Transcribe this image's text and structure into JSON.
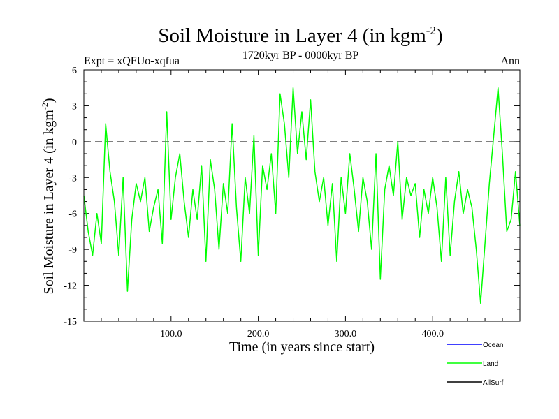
{
  "chart_data": {
    "type": "line",
    "title": "Soil Moisture in Layer 4 (in kgm",
    "title_sup": "-2",
    "title_close": ")",
    "subtitle_left": "Expt = xQFUo-xqfua",
    "subtitle_center": "1720kyr BP - 0000kyr BP",
    "subtitle_right": "Ann",
    "xlabel": "Time (in years since start)",
    "ylabel": "Soil Moisture in Layer 4 (in kgm",
    "ylabel_sup": "-2",
    "ylabel_close": ")",
    "xlim": [
      0,
      500
    ],
    "ylim": [
      -15,
      6
    ],
    "x_ticks": [
      100,
      200,
      300,
      400
    ],
    "x_tick_labels": [
      "100.0",
      "200.0",
      "300.0",
      "400.0"
    ],
    "y_ticks": [
      6,
      3,
      0,
      -3,
      -6,
      -9,
      -12,
      -15
    ],
    "y_tick_labels": [
      "6",
      "3",
      "0",
      "-3",
      "-6",
      "-9",
      "-12",
      "-15"
    ],
    "reference_line": 0,
    "legend": [
      {
        "name": "Ocean",
        "color": "#0000ff"
      },
      {
        "name": "Land",
        "color": "#00ff00"
      },
      {
        "name": "AllSurf",
        "color": "#000000"
      }
    ],
    "series": [
      {
        "name": "Land",
        "color": "#00ff00",
        "x": [
          0,
          5,
          10,
          15,
          20,
          25,
          30,
          35,
          40,
          45,
          50,
          55,
          60,
          65,
          70,
          75,
          80,
          85,
          90,
          95,
          100,
          105,
          110,
          115,
          120,
          125,
          130,
          135,
          140,
          145,
          150,
          155,
          160,
          165,
          170,
          175,
          180,
          185,
          190,
          195,
          200,
          205,
          210,
          215,
          220,
          225,
          230,
          235,
          240,
          245,
          250,
          255,
          260,
          265,
          270,
          275,
          280,
          285,
          290,
          295,
          300,
          305,
          310,
          315,
          320,
          325,
          330,
          335,
          340,
          345,
          350,
          355,
          360,
          365,
          370,
          375,
          380,
          385,
          390,
          395,
          400,
          405,
          410,
          415,
          420,
          425,
          430,
          435,
          440,
          445,
          450,
          455,
          460,
          465,
          470,
          475,
          480,
          485,
          490,
          495,
          500
        ],
        "values": [
          -4.5,
          -7.5,
          -9.5,
          -6.0,
          -8.5,
          1.5,
          -2.5,
          -5.0,
          -9.5,
          -3.0,
          -12.5,
          -6.5,
          -3.5,
          -5.0,
          -3.0,
          -7.5,
          -5.5,
          -4.0,
          -8.5,
          2.5,
          -6.5,
          -3.0,
          -1.0,
          -5.0,
          -8.0,
          -4.0,
          -6.5,
          -2.0,
          -10.0,
          -1.5,
          -4.0,
          -9.0,
          -3.5,
          -6.0,
          1.5,
          -5.5,
          -10.0,
          -3.0,
          -6.0,
          0.5,
          -9.5,
          -2.0,
          -4.0,
          -1.0,
          -6.0,
          4.0,
          1.5,
          -3.0,
          4.5,
          -1.0,
          2.5,
          -1.5,
          3.5,
          -2.5,
          -5.0,
          -3.0,
          -7.0,
          -3.5,
          -10.0,
          -3.0,
          -6.0,
          -1.0,
          -4.0,
          -7.5,
          -3.0,
          -5.0,
          -9.0,
          -1.0,
          -11.5,
          -4.0,
          -2.0,
          -4.5,
          0.0,
          -6.5,
          -3.0,
          -4.5,
          -3.5,
          -8.0,
          -4.0,
          -6.0,
          -3.0,
          -5.5,
          -10.0,
          -3.0,
          -9.5,
          -5.0,
          -2.5,
          -6.0,
          -4.0,
          -5.5,
          -9.0,
          -13.5,
          -8.5,
          -3.5,
          0.5,
          4.5,
          -1.0,
          -7.5,
          -6.5,
          -2.5,
          -7.0
        ]
      },
      {
        "name": "Ocean",
        "color": "#0000ff",
        "x": [],
        "values": []
      },
      {
        "name": "AllSurf",
        "color": "#000000",
        "x": [],
        "values": []
      }
    ]
  }
}
